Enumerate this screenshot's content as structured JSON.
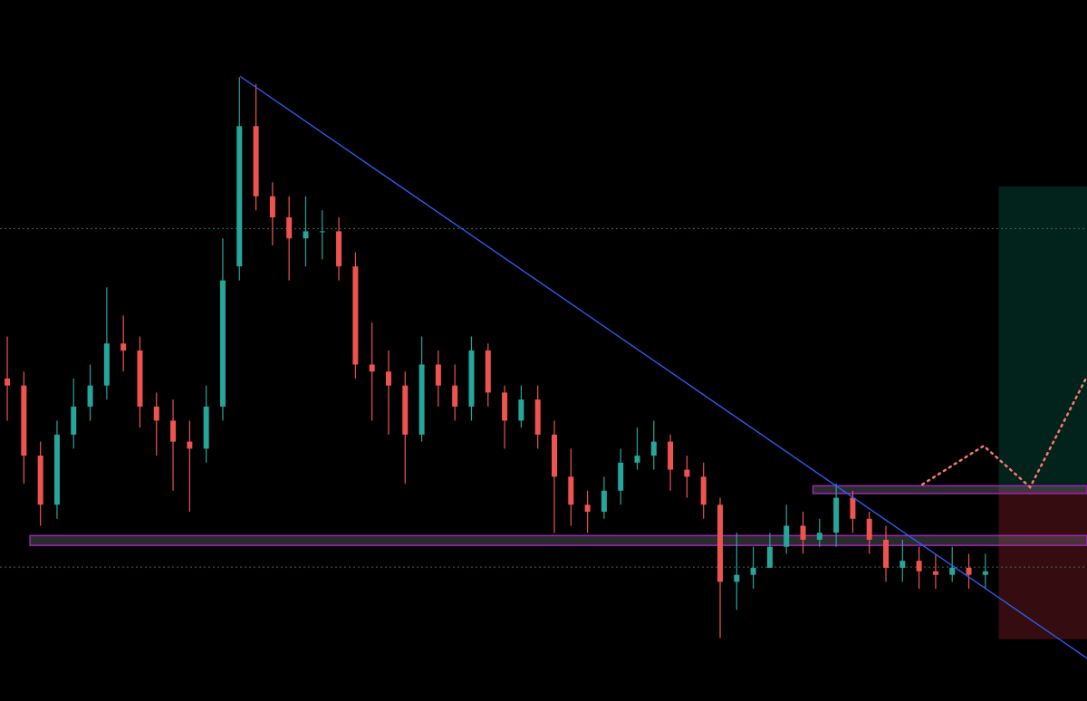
{
  "chart_data": {
    "type": "candlestick",
    "x": [
      0,
      1,
      2,
      3,
      4,
      5,
      6,
      7,
      8,
      9,
      10,
      11,
      12,
      13,
      14,
      15,
      16,
      17,
      18,
      19,
      20,
      21,
      22,
      23,
      24,
      25,
      26,
      27,
      28,
      29,
      30,
      31,
      32,
      33,
      34,
      35,
      36,
      37,
      38,
      39,
      40,
      41,
      42,
      43,
      44,
      45,
      46,
      47,
      48,
      49,
      50,
      51,
      52,
      53,
      54,
      55,
      56,
      57,
      58,
      59
    ],
    "open": [
      46,
      45,
      35,
      28,
      38,
      42,
      45,
      51,
      50,
      42,
      40,
      37,
      36,
      42,
      62,
      82,
      72,
      69,
      66,
      67,
      67,
      62,
      48,
      47,
      45,
      38,
      48,
      45,
      42,
      50,
      44,
      40,
      43,
      38,
      32,
      28,
      27,
      30,
      34,
      35,
      37,
      33,
      32,
      28,
      17,
      18,
      19,
      22,
      25,
      23,
      24,
      29,
      26,
      23,
      19,
      20,
      18.5,
      18,
      19,
      18
    ],
    "high": [
      52,
      47,
      37,
      40,
      46,
      48,
      59,
      55,
      52,
      44,
      43,
      40,
      45,
      66,
      89,
      88,
      74,
      72,
      72,
      70,
      69,
      64,
      54,
      50,
      47,
      52,
      50,
      48,
      52,
      51,
      45,
      45,
      45,
      40,
      36,
      30,
      32,
      36,
      39,
      40,
      38,
      35,
      34,
      29,
      24,
      22,
      24,
      28,
      27,
      26,
      31,
      30,
      27,
      25,
      23,
      22,
      21,
      22,
      21,
      21
    ],
    "low": [
      40,
      31,
      25,
      26,
      36,
      40,
      43,
      47,
      39,
      35,
      30,
      27,
      34,
      40,
      60,
      70,
      65,
      60,
      62,
      63,
      60,
      46,
      40,
      38,
      31,
      37,
      42,
      40,
      40,
      42,
      36,
      39,
      36,
      24,
      25,
      24,
      26,
      28,
      33,
      33,
      30,
      29,
      26,
      9,
      13,
      16,
      19,
      21,
      21,
      22,
      22,
      24,
      21,
      17,
      17,
      16,
      16,
      17,
      16,
      16
    ],
    "close": [
      45,
      35,
      28,
      38,
      42,
      45,
      51,
      50,
      42,
      40,
      37,
      36,
      42,
      60,
      82,
      72,
      69,
      66,
      67,
      67,
      62,
      48,
      47,
      45,
      38,
      48,
      45,
      42,
      50,
      44,
      40,
      43,
      38,
      32,
      28,
      27,
      30,
      34,
      35,
      37,
      33,
      32,
      28,
      17,
      18,
      19,
      22,
      25,
      23,
      24,
      29,
      26,
      23,
      19,
      20,
      18.5,
      18,
      19,
      18,
      18.5
    ],
    "up_color": "#26a69a",
    "down_color": "#ef5350",
    "xlim": [
      -0.44,
      65.13
    ],
    "ylim": [
      0,
      100
    ],
    "price_lines": [
      67.4,
      19.1
    ],
    "trendline": {
      "x": [
        14.05,
        65.13
      ],
      "y": [
        89.1,
        6.1
      ],
      "color": "#2962ff"
    },
    "zones": [
      {
        "x": [
          1.37,
          65.13
        ],
        "y": [
          22.2,
          23.6
        ],
        "color": "#9c27b0"
      },
      {
        "x": [
          48.6,
          65.13
        ],
        "y": [
          29.6,
          30.7
        ],
        "color": "#9c27b0"
      }
    ],
    "position": {
      "x": [
        59.8,
        65.13
      ],
      "top": 73.4,
      "entry": 30.2,
      "bottom": 8.8
    },
    "projection": {
      "x": [
        55.2,
        58.9,
        61.7,
        65.13
      ],
      "y": [
        30.9,
        36.4,
        30.5,
        46.3
      ],
      "color": "#f77c6b"
    }
  }
}
